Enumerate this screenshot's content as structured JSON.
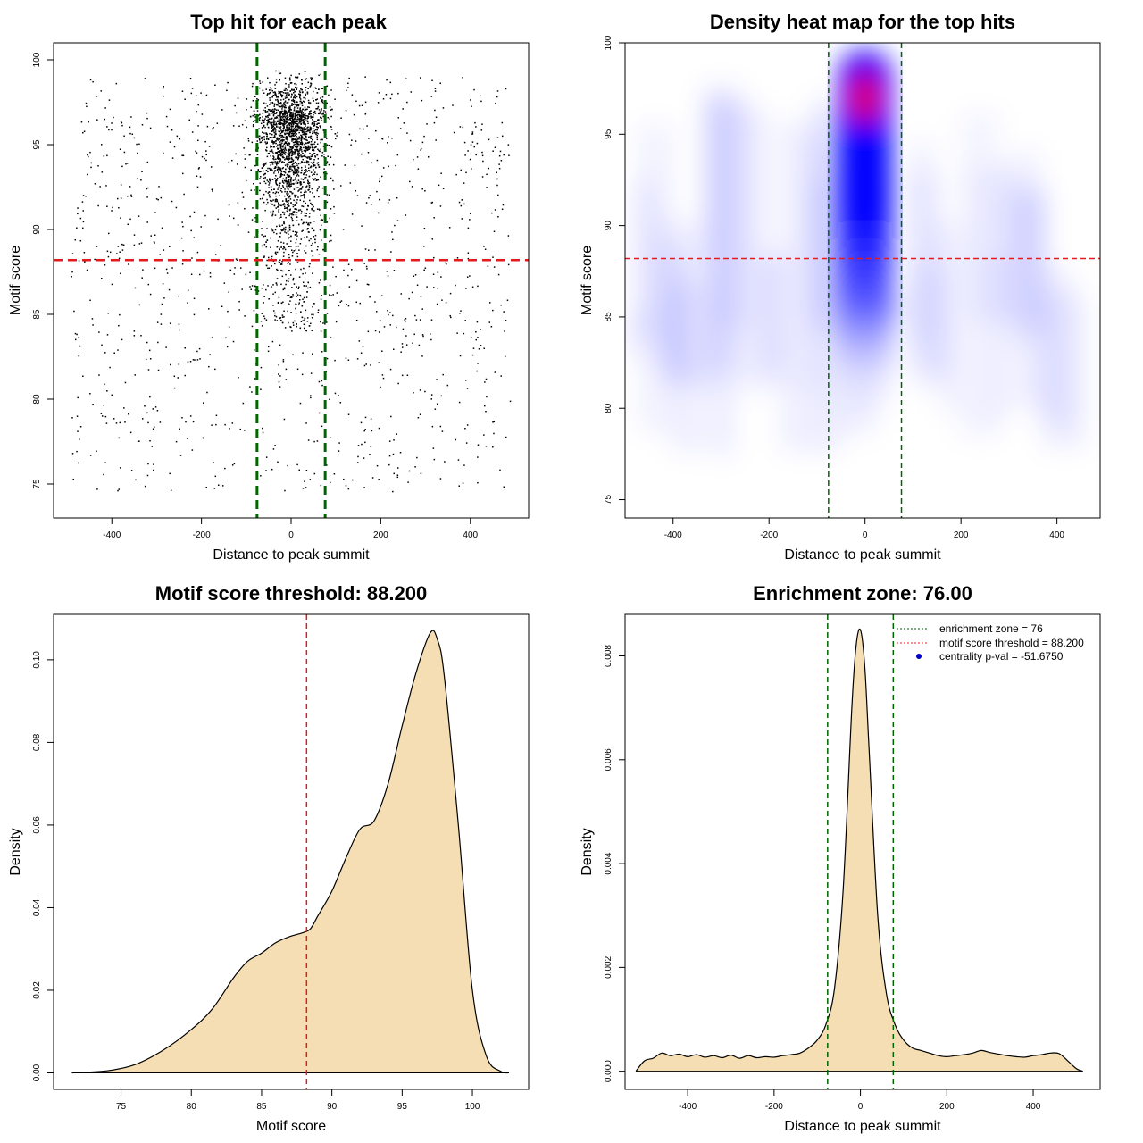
{
  "chart_data": [
    {
      "type": "scatter",
      "title": "Top hit for each peak",
      "xlabel": "Distance to peak summit",
      "ylabel": "Motif score",
      "xlim": [
        -530,
        530
      ],
      "ylim": [
        73,
        101
      ],
      "x_ticks": [
        -400,
        -200,
        0,
        200,
        400
      ],
      "y_ticks": [
        75,
        80,
        85,
        90,
        95,
        100
      ],
      "x_tick_labels": [
        "-400",
        "-200",
        "0",
        "200",
        "400"
      ],
      "y_tick_labels": [
        "75",
        "80",
        "85",
        "90",
        "95",
        "100"
      ],
      "vlines": [
        -76,
        76
      ],
      "vline_color": "#006400",
      "hline": 88.2,
      "hline_color": "#e41a1c",
      "point_color": "#000000",
      "distribution": {
        "background_x_range": [
          -490,
          490
        ],
        "background_y_range": [
          74.5,
          99
        ],
        "cluster_x_center": 0,
        "cluster_x_spread": 35,
        "cluster_y_peak": 97,
        "cluster_y_range": [
          84,
          99.8
        ]
      }
    },
    {
      "type": "heatmap",
      "title": "Density heat map for the top hits",
      "xlabel": "Distance to peak summit",
      "ylabel": "Motif score",
      "xlim": [
        -500,
        490
      ],
      "ylim": [
        74,
        100
      ],
      "x_ticks": [
        -400,
        -200,
        0,
        200,
        400
      ],
      "y_ticks": [
        75,
        80,
        85,
        90,
        95,
        100
      ],
      "x_tick_labels": [
        "-400",
        "-200",
        "0",
        "200",
        "400"
      ],
      "y_tick_labels": [
        "75",
        "80",
        "85",
        "90",
        "95",
        "100"
      ],
      "vlines": [
        -76,
        76
      ],
      "vline_color": "#006400",
      "hline": 88.2,
      "hline_color": "#e41a1c",
      "colors": [
        "#ffffff",
        "#0000ff",
        "#ff0000"
      ],
      "hotspot": {
        "x": 0,
        "y": 97
      }
    },
    {
      "type": "area",
      "title": "Motif score threshold: 88.200",
      "xlabel": "Motif score",
      "ylabel": "Density",
      "xlim": [
        70.2,
        104
      ],
      "ylim": [
        -0.004,
        0.111
      ],
      "x_ticks": [
        75,
        80,
        85,
        90,
        95,
        100
      ],
      "y_ticks": [
        0.0,
        0.02,
        0.04,
        0.06,
        0.08,
        0.1
      ],
      "x_tick_labels": [
        "75",
        "80",
        "85",
        "90",
        "95",
        "100"
      ],
      "y_tick_labels": [
        "0.00",
        "0.02",
        "0.04",
        "0.06",
        "0.08",
        "0.10"
      ],
      "fill_color": "#f5deb3",
      "vline": 88.2,
      "vline_color": "#e41a1c",
      "x": [
        71.5,
        74,
        76,
        78,
        80,
        81.5,
        83,
        84,
        85,
        86,
        87,
        88,
        88.5,
        89,
        90,
        91,
        92,
        93,
        94,
        95,
        96,
        97,
        97.5,
        98,
        99,
        100,
        101,
        102,
        102.6
      ],
      "y": [
        0.0,
        0.0005,
        0.002,
        0.0055,
        0.0105,
        0.0155,
        0.023,
        0.027,
        0.029,
        0.0315,
        0.033,
        0.034,
        0.035,
        0.038,
        0.044,
        0.052,
        0.059,
        0.061,
        0.07,
        0.084,
        0.097,
        0.1065,
        0.105,
        0.096,
        0.06,
        0.02,
        0.004,
        0.0004,
        0.0
      ]
    },
    {
      "type": "area",
      "title": "Enrichment zone: 76.00",
      "xlabel": "Distance to peak summit",
      "ylabel": "Density",
      "xlim": [
        -545,
        555
      ],
      "ylim": [
        -0.00035,
        0.0088
      ],
      "x_ticks": [
        -400,
        -200,
        0,
        200,
        400
      ],
      "y_ticks": [
        0.0,
        0.002,
        0.004,
        0.006,
        0.008
      ],
      "x_tick_labels": [
        "-400",
        "-200",
        "0",
        "200",
        "400"
      ],
      "y_tick_labels": [
        "0.000",
        "0.002",
        "0.004",
        "0.006",
        "0.008"
      ],
      "fill_color": "#f5deb3",
      "vlines": [
        -76,
        76
      ],
      "vline_color": "#006400",
      "x": [
        -520,
        -500,
        -480,
        -460,
        -440,
        -420,
        -400,
        -380,
        -360,
        -340,
        -320,
        -300,
        -280,
        -260,
        -240,
        -220,
        -200,
        -180,
        -160,
        -140,
        -120,
        -100,
        -80,
        -60,
        -40,
        -20,
        -10,
        0,
        10,
        20,
        40,
        60,
        80,
        100,
        120,
        140,
        160,
        180,
        200,
        220,
        240,
        260,
        280,
        300,
        320,
        340,
        360,
        380,
        400,
        420,
        440,
        460,
        480,
        500,
        515
      ],
      "y": [
        0.0,
        0.0002,
        0.00025,
        0.00035,
        0.0003,
        0.00033,
        0.00028,
        0.00032,
        0.00027,
        0.0003,
        0.00026,
        0.00031,
        0.00025,
        0.0003,
        0.00026,
        0.00028,
        0.00027,
        0.0003,
        0.00032,
        0.00035,
        0.00045,
        0.0006,
        0.0009,
        0.0016,
        0.0035,
        0.007,
        0.0082,
        0.0085,
        0.0078,
        0.0062,
        0.003,
        0.0015,
        0.0009,
        0.0006,
        0.00045,
        0.0004,
        0.00035,
        0.0003,
        0.00028,
        0.0003,
        0.00032,
        0.00035,
        0.0004,
        0.00036,
        0.00033,
        0.0003,
        0.00028,
        0.00027,
        0.0003,
        0.00032,
        0.00035,
        0.00034,
        0.0002,
        5e-05,
        0.0
      ]
    }
  ],
  "legend": {
    "items": [
      {
        "label": "enrichment zone = 76",
        "color": "#006400",
        "symbol": "dotted-line"
      },
      {
        "label": "motif score threshold = 88.200",
        "color": "#e41a1c",
        "symbol": "dotted-line"
      },
      {
        "label": "centrality p-val = -51.6750",
        "color": "#0000cd",
        "symbol": "dot"
      }
    ]
  }
}
